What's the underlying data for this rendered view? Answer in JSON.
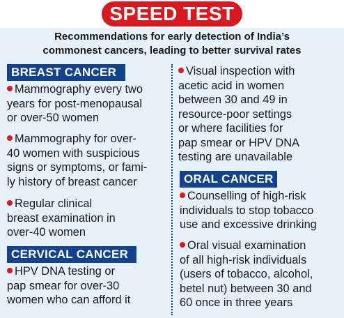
{
  "title": "SPEED TEST",
  "subtitle_line1": "Recommendations for early detection of India’s",
  "subtitle_line2": "commonest cancers, leading to better survival rates",
  "breast": {
    "header": "BREAST CANCER",
    "items": [
      "Mammography every two\nyears for post-menopausal\nor over-50 women",
      "Mammography for over-\n40 women with suspicious\nsigns or symptoms, or fami-\nly history of breast cancer",
      "Regular clinical\nbreast examination in\nover-40 women"
    ]
  },
  "cervical": {
    "header": "CERVICAL CANCER",
    "items": [
      "HPV DNA testing or\npap smear for over-30\nwomen who can afford it",
      "Visual inspection with\nacetic acid in women\nbetween 30 and 49 in\nresource-poor settings\nor where facilities for\npap smear or HPV DNA\ntesting are unavailable"
    ]
  },
  "oral": {
    "header": "ORAL CANCER",
    "items": [
      "Counselling of high-risk\nindividuals to stop tobacco\nuse and excessive drinking",
      "Oral visual examination\nof all high-risk individuals\n(users of tobacco, alcohol,\nbetel nut) between 30 and\n60 once in three years"
    ]
  },
  "colors": {
    "title_red": "#d71920",
    "header_blue": "#14438e",
    "background": "#e6f1f9"
  }
}
